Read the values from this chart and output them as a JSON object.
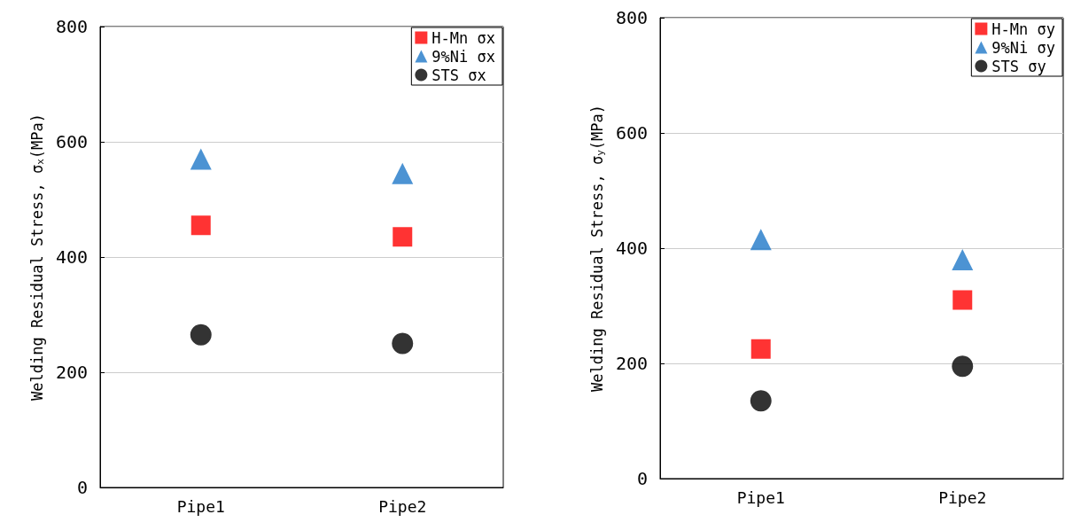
{
  "chart_data": [
    {
      "type": "scatter",
      "ylabel": "Welding Residual Stress, σ$_{x}$(MPa)",
      "categories": [
        "Pipe1",
        "Pipe2"
      ],
      "ylim": [
        0,
        800
      ],
      "yticks": [
        0,
        200,
        400,
        600,
        800
      ],
      "grid": "y",
      "legend": "top right",
      "series": [
        {
          "name": "H-Mn σx",
          "color": "#ff0000",
          "marker": "square",
          "values": [
            455,
            435
          ]
        },
        {
          "name": "9%Ni σx",
          "color": "#1f78c8",
          "marker": "triangle",
          "values": [
            570,
            545
          ]
        },
        {
          "name": "STS σx",
          "color": "#000000",
          "marker": "circle",
          "values": [
            265,
            250
          ]
        }
      ]
    },
    {
      "type": "scatter",
      "ylabel": "Welding Residual Stress, σ$_{y}$(MPa)",
      "categories": [
        "Pipe1",
        "Pipe2"
      ],
      "ylim": [
        0,
        800
      ],
      "yticks": [
        0,
        200,
        400,
        600,
        800
      ],
      "grid": "y",
      "legend": "top right",
      "series": [
        {
          "name": "H-Mn σy",
          "color": "#ff0000",
          "marker": "square",
          "values": [
            225,
            310
          ]
        },
        {
          "name": "9%Ni σy",
          "color": "#1f78c8",
          "marker": "triangle",
          "values": [
            415,
            380
          ]
        },
        {
          "name": "STS σy",
          "color": "#000000",
          "marker": "circle",
          "values": [
            135,
            195
          ]
        }
      ]
    }
  ]
}
